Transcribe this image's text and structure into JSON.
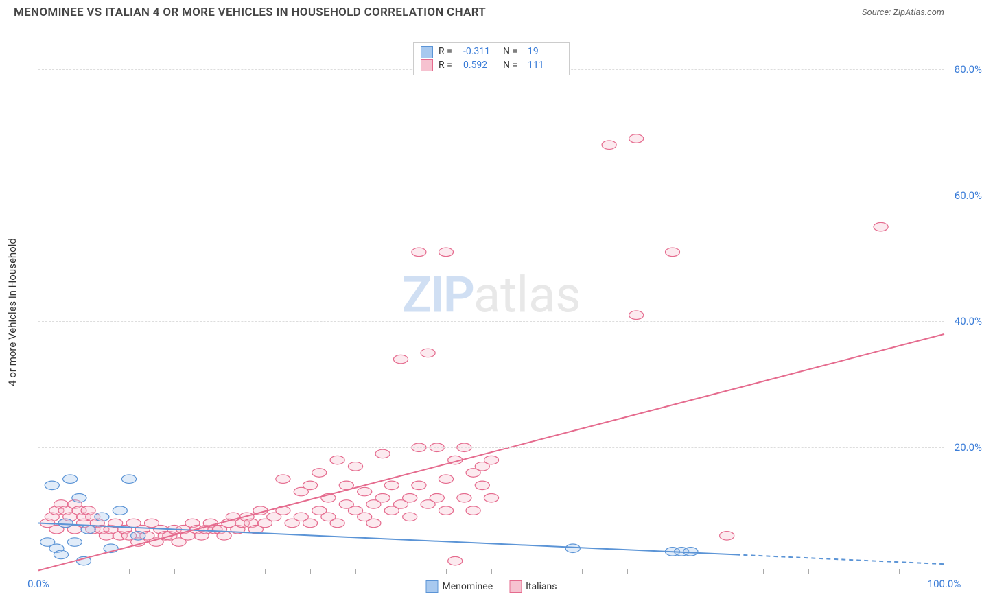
{
  "title": "MENOMINEE VS ITALIAN 4 OR MORE VEHICLES IN HOUSEHOLD CORRELATION CHART",
  "source": "Source: ZipAtlas.com",
  "y_axis_label": "4 or more Vehicles in Household",
  "watermark": {
    "bold": "ZIP",
    "rest": "atlas"
  },
  "chart": {
    "type": "scatter-with-regression",
    "xlim": [
      0,
      100
    ],
    "ylim": [
      0,
      85
    ],
    "x_ticks_major": [
      0,
      100
    ],
    "x_ticks_minor_step": 5,
    "y_ticks": [
      20,
      40,
      60,
      80
    ],
    "x_tick_labels": [
      "0.0%",
      "100.0%"
    ],
    "y_tick_labels": [
      "20.0%",
      "40.0%",
      "60.0%",
      "80.0%"
    ],
    "background_color": "#ffffff",
    "grid_color": "#dddddd",
    "axis_color": "#aaaaaa",
    "tick_label_color": "#3b7dd8",
    "point_radius": 8,
    "point_fill_opacity": 0.35,
    "point_stroke_width": 1.2,
    "line_width": 2
  },
  "series": [
    {
      "id": "menominee",
      "label": "Menominee",
      "color_fill": "#a8c9ef",
      "color_stroke": "#5b94d6",
      "R": "-0.311",
      "N": "19",
      "regression": {
        "x1": 0,
        "y1": 8,
        "x2": 77,
        "y2": 3,
        "extend_x2": 100,
        "extend_y2": 1.5
      },
      "points": [
        [
          1,
          5
        ],
        [
          1.5,
          14
        ],
        [
          2,
          4
        ],
        [
          2.5,
          3
        ],
        [
          3,
          8
        ],
        [
          3.5,
          15
        ],
        [
          4,
          5
        ],
        [
          4.5,
          12
        ],
        [
          5,
          2
        ],
        [
          5.5,
          7
        ],
        [
          7,
          9
        ],
        [
          8,
          4
        ],
        [
          9,
          10
        ],
        [
          10,
          15
        ],
        [
          11,
          6
        ],
        [
          59,
          4
        ],
        [
          70,
          3.5
        ],
        [
          71,
          3.5
        ],
        [
          72,
          3.5
        ]
      ]
    },
    {
      "id": "italians",
      "label": "Italians",
      "color_fill": "#f6c2d0",
      "color_stroke": "#e56b8e",
      "R": "0.592",
      "N": "111",
      "regression": {
        "x1": 0,
        "y1": 0.5,
        "x2": 100,
        "y2": 38,
        "extend_x2": 100,
        "extend_y2": 38
      },
      "points": [
        [
          1,
          8
        ],
        [
          1.5,
          9
        ],
        [
          2,
          10
        ],
        [
          2,
          7
        ],
        [
          2.5,
          11
        ],
        [
          3,
          8
        ],
        [
          3,
          10
        ],
        [
          3.5,
          9
        ],
        [
          4,
          7
        ],
        [
          4,
          11
        ],
        [
          4.5,
          10
        ],
        [
          5,
          8
        ],
        [
          5,
          9
        ],
        [
          5.5,
          10
        ],
        [
          6,
          7
        ],
        [
          6,
          9
        ],
        [
          6.5,
          8
        ],
        [
          7,
          7
        ],
        [
          7.5,
          6
        ],
        [
          8,
          7
        ],
        [
          8.5,
          8
        ],
        [
          9,
          6
        ],
        [
          9.5,
          7
        ],
        [
          10,
          6
        ],
        [
          10.5,
          8
        ],
        [
          11,
          5
        ],
        [
          11.5,
          7
        ],
        [
          12,
          6
        ],
        [
          12.5,
          8
        ],
        [
          13,
          5
        ],
        [
          13.5,
          7
        ],
        [
          14,
          6
        ],
        [
          14.5,
          6
        ],
        [
          15,
          7
        ],
        [
          15.5,
          5
        ],
        [
          16,
          7
        ],
        [
          16.5,
          6
        ],
        [
          17,
          8
        ],
        [
          17.5,
          7
        ],
        [
          18,
          6
        ],
        [
          18.5,
          7
        ],
        [
          19,
          8
        ],
        [
          19.5,
          7
        ],
        [
          20,
          7
        ],
        [
          20.5,
          6
        ],
        [
          21,
          8
        ],
        [
          21.5,
          9
        ],
        [
          22,
          7
        ],
        [
          22.5,
          8
        ],
        [
          23,
          9
        ],
        [
          23.5,
          8
        ],
        [
          24,
          7
        ],
        [
          24.5,
          10
        ],
        [
          25,
          8
        ],
        [
          26,
          9
        ],
        [
          27,
          15
        ],
        [
          27,
          10
        ],
        [
          28,
          8
        ],
        [
          29,
          13
        ],
        [
          29,
          9
        ],
        [
          30,
          14
        ],
        [
          30,
          8
        ],
        [
          31,
          10
        ],
        [
          31,
          16
        ],
        [
          32,
          9
        ],
        [
          32,
          12
        ],
        [
          33,
          18
        ],
        [
          33,
          8
        ],
        [
          34,
          11
        ],
        [
          34,
          14
        ],
        [
          35,
          10
        ],
        [
          35,
          17
        ],
        [
          36,
          9
        ],
        [
          36,
          13
        ],
        [
          37,
          11
        ],
        [
          37,
          8
        ],
        [
          38,
          12
        ],
        [
          38,
          19
        ],
        [
          39,
          10
        ],
        [
          39,
          14
        ],
        [
          40,
          11
        ],
        [
          40,
          34
        ],
        [
          41,
          12
        ],
        [
          41,
          9
        ],
        [
          42,
          20
        ],
        [
          42,
          14
        ],
        [
          43,
          11
        ],
        [
          43,
          35
        ],
        [
          44,
          20
        ],
        [
          44,
          12
        ],
        [
          45,
          10
        ],
        [
          45,
          15
        ],
        [
          46,
          2
        ],
        [
          46,
          18
        ],
        [
          47,
          12
        ],
        [
          47,
          20
        ],
        [
          48,
          10
        ],
        [
          48,
          16
        ],
        [
          49,
          14
        ],
        [
          49,
          17
        ],
        [
          50,
          12
        ],
        [
          50,
          18
        ],
        [
          42,
          51
        ],
        [
          45,
          51
        ],
        [
          63,
          68
        ],
        [
          66,
          69
        ],
        [
          66,
          41
        ],
        [
          70,
          51
        ],
        [
          76,
          6
        ],
        [
          93,
          55
        ]
      ]
    }
  ],
  "legend_bottom": [
    {
      "label": "Menominee",
      "fill": "#a8c9ef",
      "stroke": "#5b94d6"
    },
    {
      "label": "Italians",
      "fill": "#f6c2d0",
      "stroke": "#e56b8e"
    }
  ]
}
